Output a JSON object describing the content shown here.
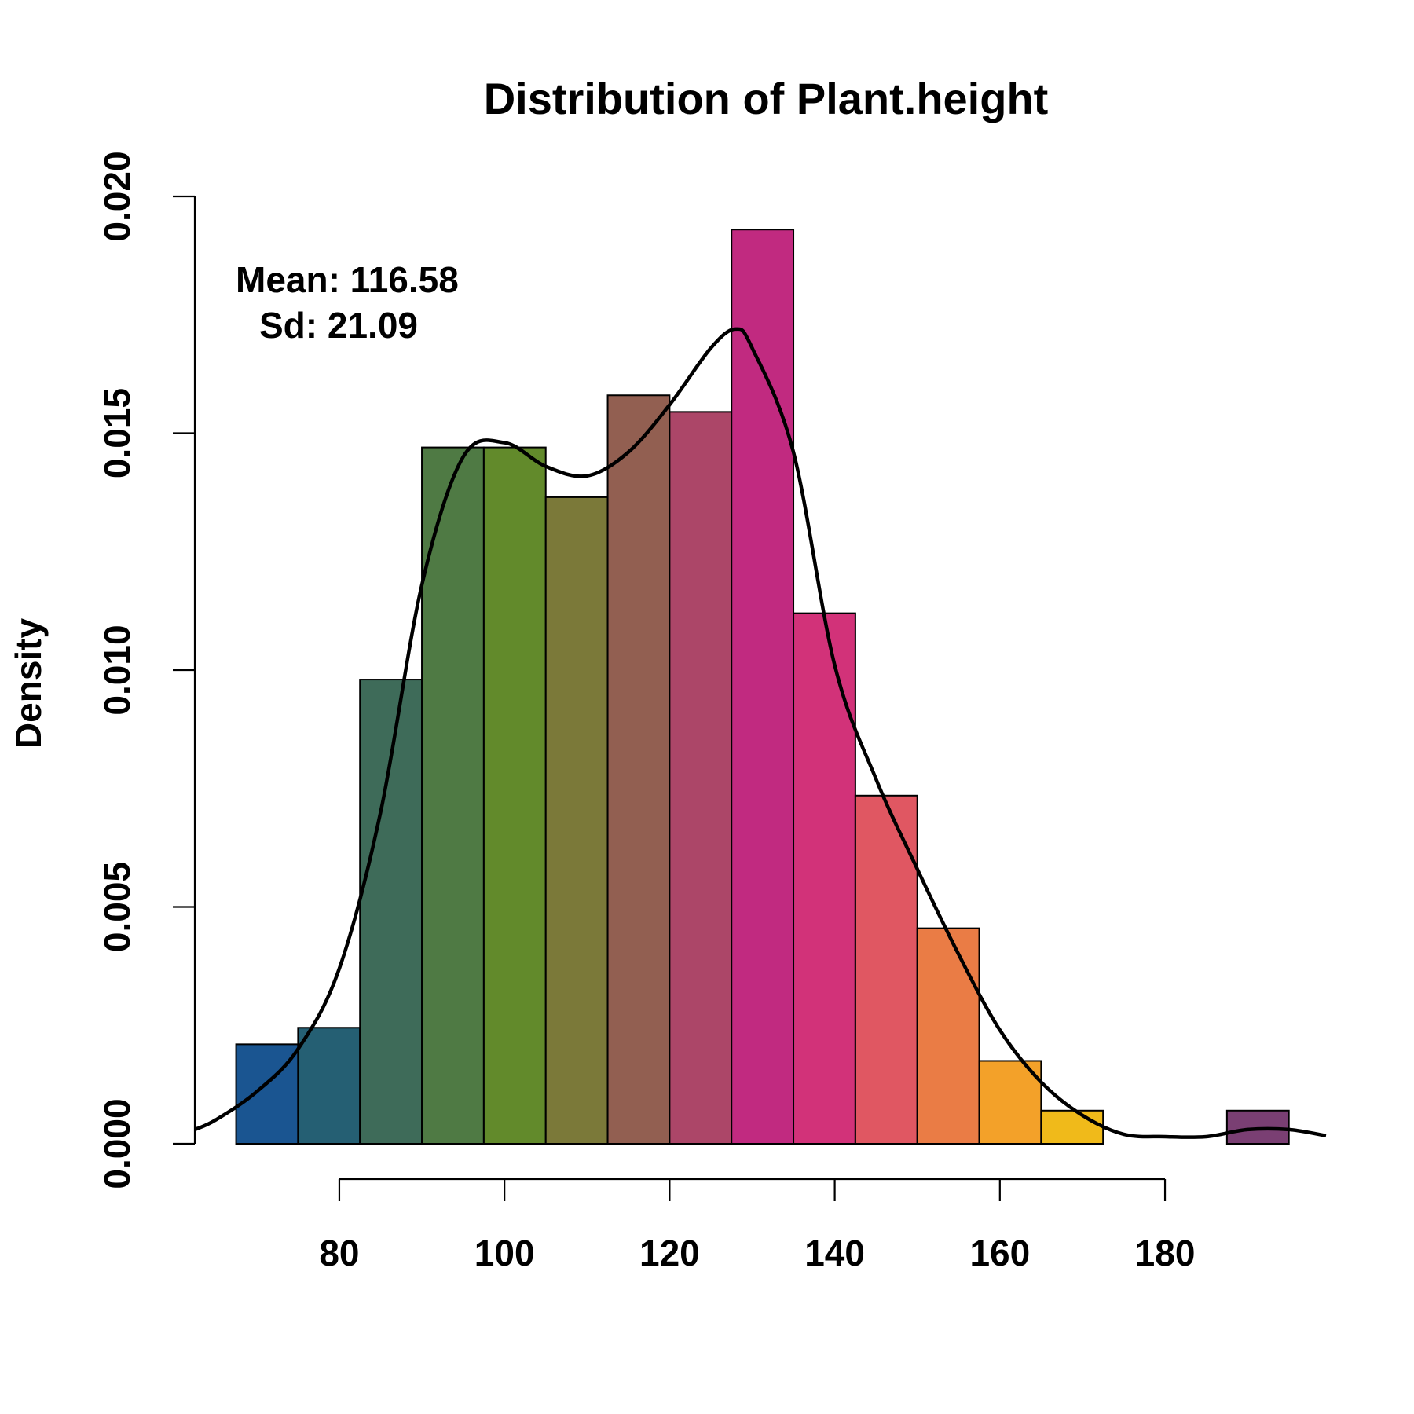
{
  "chart_data": {
    "type": "bar",
    "title": "Distribution of Plant.height",
    "xlabel": "",
    "ylabel": "Density",
    "annotations": {
      "mean_label": "Mean: 116.58",
      "sd_label": "Sd: 21.09"
    },
    "bins": [
      {
        "x0": 67.5,
        "x1": 75.0,
        "value": 0.0021,
        "color": "#1A5591"
      },
      {
        "x0": 75.0,
        "x1": 82.5,
        "value": 0.00245,
        "color": "#255F73"
      },
      {
        "x0": 82.5,
        "x1": 90.0,
        "value": 0.0098,
        "color": "#3E6B59"
      },
      {
        "x0": 90.0,
        "x1": 97.5,
        "value": 0.0147,
        "color": "#4F7A44"
      },
      {
        "x0": 97.5,
        "x1": 105.0,
        "value": 0.0147,
        "color": "#628A2B"
      },
      {
        "x0": 105.0,
        "x1": 112.5,
        "value": 0.01365,
        "color": "#7B7939"
      },
      {
        "x0": 112.5,
        "x1": 120.0,
        "value": 0.0158,
        "color": "#925F51"
      },
      {
        "x0": 120.0,
        "x1": 127.5,
        "value": 0.01545,
        "color": "#AC4668"
      },
      {
        "x0": 127.5,
        "x1": 135.0,
        "value": 0.0193,
        "color": "#C12A80"
      },
      {
        "x0": 135.0,
        "x1": 142.5,
        "value": 0.0112,
        "color": "#D23279"
      },
      {
        "x0": 142.5,
        "x1": 150.0,
        "value": 0.00735,
        "color": "#E05762"
      },
      {
        "x0": 150.0,
        "x1": 157.5,
        "value": 0.00455,
        "color": "#EA7C45"
      },
      {
        "x0": 157.5,
        "x1": 165.0,
        "value": 0.00175,
        "color": "#F3A129"
      },
      {
        "x0": 165.0,
        "x1": 172.5,
        "value": 0.0007,
        "color": "#F0BA1A"
      },
      {
        "x0": 187.5,
        "x1": 195.0,
        "value": 0.0007,
        "color": "#7A3F73"
      }
    ],
    "density": {
      "x": [
        62.5,
        65,
        70,
        75,
        80,
        85,
        90,
        95,
        100,
        105,
        110,
        115,
        120,
        125,
        128,
        130,
        135,
        140,
        145,
        150,
        155,
        160,
        165,
        170,
        175,
        180,
        185,
        190,
        195,
        199.5
      ],
      "y": [
        0.0003,
        0.0005,
        0.0011,
        0.002,
        0.0037,
        0.007,
        0.0118,
        0.0145,
        0.0148,
        0.0143,
        0.0141,
        0.0146,
        0.0156,
        0.0168,
        0.0172,
        0.0168,
        0.0146,
        0.0101,
        0.0077,
        0.0058,
        0.004,
        0.0024,
        0.0013,
        0.0006,
        0.0002,
        0.00015,
        0.00015,
        0.0003,
        0.0003,
        0.00017
      ]
    },
    "xticks": [
      80,
      100,
      120,
      140,
      160,
      180
    ],
    "xtick_labels": [
      "80",
      "100",
      "120",
      "140",
      "160",
      "180"
    ],
    "yticks": [
      0.0,
      0.005,
      0.01,
      0.015,
      0.02
    ],
    "ytick_labels": [
      "0.000",
      "0.005",
      "0.010",
      "0.015",
      "0.020"
    ],
    "xlim": [
      62.5,
      199.5
    ],
    "ylim": [
      0,
      0.02
    ],
    "grid": false,
    "legend": "none"
  }
}
